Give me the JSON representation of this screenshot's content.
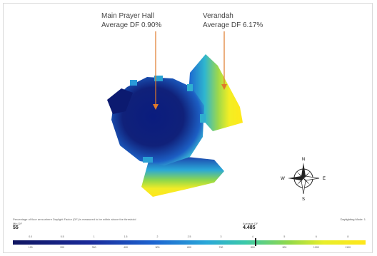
{
  "callouts": {
    "main": {
      "line1": "Main Prayer Hall",
      "line2": "Average DF 0.90%"
    },
    "verandah": {
      "line1": "Verandah",
      "line2": "Average DF 6.17%"
    }
  },
  "compass": {
    "n": "N",
    "s": "S",
    "e": "E",
    "w": "W"
  },
  "footer": {
    "note": "Percentage of floor area where Daylight Factor (DF) is measured to be within above the threshold",
    "right_label": "Daylighting Mode: 1",
    "min_label": "Min DF",
    "min_value": "55",
    "avg_label": "Average DF",
    "avg_value": "4.485"
  },
  "scale": {
    "ticks_top": [
      "0.0",
      "0.5",
      "1",
      "1.5",
      "2",
      "2.5",
      "3",
      "4",
      "5",
      "6",
      "8"
    ],
    "ticks_bottom": [
      "100",
      "200",
      "300",
      "400",
      "500",
      "600",
      "700",
      "800",
      "900",
      "1000",
      "1100"
    ],
    "colors": {
      "low": "#101560",
      "mid": "#2aa8d8",
      "high": "#ffe61a"
    }
  }
}
